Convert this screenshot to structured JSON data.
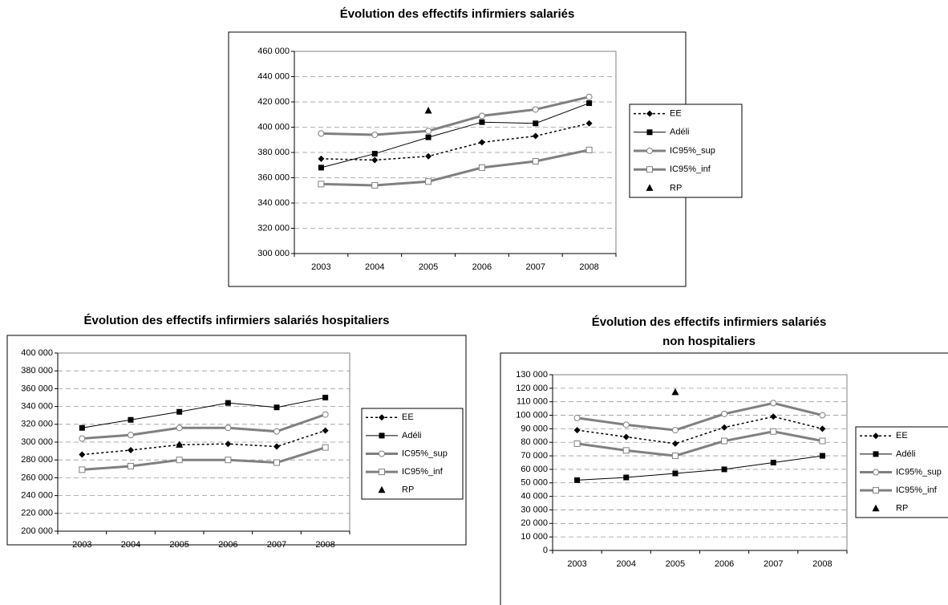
{
  "chart_data": [
    {
      "type": "line",
      "title": [
        "Évolution des effectifs infirmiers salariés"
      ],
      "categories": [
        "2003",
        "2004",
        "2005",
        "2006",
        "2007",
        "2008"
      ],
      "ylim": [
        300000,
        460000
      ],
      "yticks": [
        {
          "value": 300000,
          "label": "300 000"
        },
        {
          "value": 320000,
          "label": "320 000"
        },
        {
          "value": 340000,
          "label": "340 000"
        },
        {
          "value": 360000,
          "label": "360 000"
        },
        {
          "value": 380000,
          "label": "380 000"
        },
        {
          "value": 400000,
          "label": "400 000"
        },
        {
          "value": 420000,
          "label": "420 000"
        },
        {
          "value": 440000,
          "label": "440 000"
        },
        {
          "value": 460000,
          "label": "460 000"
        }
      ],
      "grid": true,
      "legend": "right",
      "series": [
        {
          "name": "EE",
          "color": "#000000",
          "line_style": "dotted",
          "marker": "diamond",
          "values": [
            375000,
            374000,
            377000,
            388000,
            393000,
            403000
          ]
        },
        {
          "name": "Adéli",
          "color": "#000000",
          "line_style": "solid",
          "marker": "square",
          "values": [
            368000,
            379000,
            392000,
            404000,
            403000,
            419000
          ]
        },
        {
          "name": "IC95%_sup",
          "color": "#808080",
          "line_style": "thick",
          "marker": "circle",
          "values": [
            395000,
            394000,
            397000,
            409000,
            414000,
            424000
          ]
        },
        {
          "name": "IC95%_inf",
          "color": "#808080",
          "line_style": "thick",
          "marker": "hollow-square",
          "values": [
            355000,
            354000,
            357000,
            368000,
            373000,
            382000
          ]
        },
        {
          "name": "RP",
          "color": "#000000",
          "line_style": "none",
          "marker": "triangle",
          "values": [
            null,
            null,
            413000,
            null,
            null,
            null
          ]
        }
      ]
    },
    {
      "type": "line",
      "title": [
        "Évolution des effectifs infirmiers salariés hospitaliers"
      ],
      "categories": [
        "2003",
        "2004",
        "2005",
        "2006",
        "2007",
        "2008"
      ],
      "ylim": [
        200000,
        400000
      ],
      "yticks": [
        {
          "value": 200000,
          "label": "200 000"
        },
        {
          "value": 220000,
          "label": "220 000"
        },
        {
          "value": 240000,
          "label": "240 000"
        },
        {
          "value": 260000,
          "label": "260 000"
        },
        {
          "value": 280000,
          "label": "280 000"
        },
        {
          "value": 300000,
          "label": "300 000"
        },
        {
          "value": 320000,
          "label": "320 000"
        },
        {
          "value": 340000,
          "label": "340 000"
        },
        {
          "value": 360000,
          "label": "360 000"
        },
        {
          "value": 380000,
          "label": "380 000"
        },
        {
          "value": 400000,
          "label": "400 000"
        }
      ],
      "grid": true,
      "legend": "right",
      "series": [
        {
          "name": "EE",
          "color": "#000000",
          "line_style": "dotted",
          "marker": "diamond",
          "values": [
            286000,
            291000,
            297000,
            298000,
            295000,
            313000
          ]
        },
        {
          "name": "Adéli",
          "color": "#000000",
          "line_style": "solid",
          "marker": "square",
          "values": [
            316000,
            325000,
            334000,
            344000,
            339000,
            350000
          ]
        },
        {
          "name": "IC95%_sup",
          "color": "#808080",
          "line_style": "thick",
          "marker": "circle",
          "values": [
            304000,
            308000,
            316000,
            316000,
            312000,
            331000
          ]
        },
        {
          "name": "IC95%_inf",
          "color": "#808080",
          "line_style": "thick",
          "marker": "hollow-square",
          "values": [
            269000,
            273000,
            280000,
            280000,
            277000,
            294000
          ]
        },
        {
          "name": "RP",
          "color": "#000000",
          "line_style": "none",
          "marker": "triangle",
          "values": [
            null,
            null,
            297000,
            null,
            null,
            null
          ]
        }
      ]
    },
    {
      "type": "line",
      "title": [
        "Évolution des effectifs infirmiers salariés",
        "non hospitaliers"
      ],
      "categories": [
        "2003",
        "2004",
        "2005",
        "2006",
        "2007",
        "2008"
      ],
      "ylim": [
        0,
        130000
      ],
      "yticks": [
        0,
        {
          "value": 10000,
          "label": "10 000"
        },
        {
          "value": 20000,
          "label": "20 000"
        },
        {
          "value": 30000,
          "label": "30 000"
        },
        {
          "value": 40000,
          "label": "40 000"
        },
        {
          "value": 50000,
          "label": "50 000"
        },
        {
          "value": 60000,
          "label": "60 000"
        },
        {
          "value": 70000,
          "label": "70 000"
        },
        {
          "value": 80000,
          "label": "80 000"
        },
        {
          "value": 90000,
          "label": "90 000"
        },
        {
          "value": 100000,
          "label": "100 000"
        },
        {
          "value": 110000,
          "label": "110 000"
        },
        {
          "value": 120000,
          "label": "120 000"
        },
        {
          "value": 130000,
          "label": "130 000"
        }
      ],
      "grid": true,
      "legend": "right",
      "series": [
        {
          "name": "EE",
          "color": "#000000",
          "line_style": "dotted",
          "marker": "diamond",
          "values": [
            89000,
            84000,
            79000,
            91000,
            99000,
            90000
          ]
        },
        {
          "name": "Adéli",
          "color": "#000000",
          "line_style": "solid",
          "marker": "square",
          "values": [
            52000,
            54000,
            57000,
            60000,
            65000,
            70000
          ]
        },
        {
          "name": "IC95%_sup",
          "color": "#808080",
          "line_style": "thick",
          "marker": "circle",
          "values": [
            98000,
            93000,
            89000,
            101000,
            109000,
            100000
          ]
        },
        {
          "name": "IC95%_inf",
          "color": "#808080",
          "line_style": "thick",
          "marker": "hollow-square",
          "values": [
            79000,
            74000,
            70000,
            81000,
            88000,
            81000
          ]
        },
        {
          "name": "RP",
          "color": "#000000",
          "line_style": "none",
          "marker": "triangle",
          "values": [
            null,
            null,
            117000,
            null,
            null,
            null
          ]
        }
      ]
    }
  ]
}
